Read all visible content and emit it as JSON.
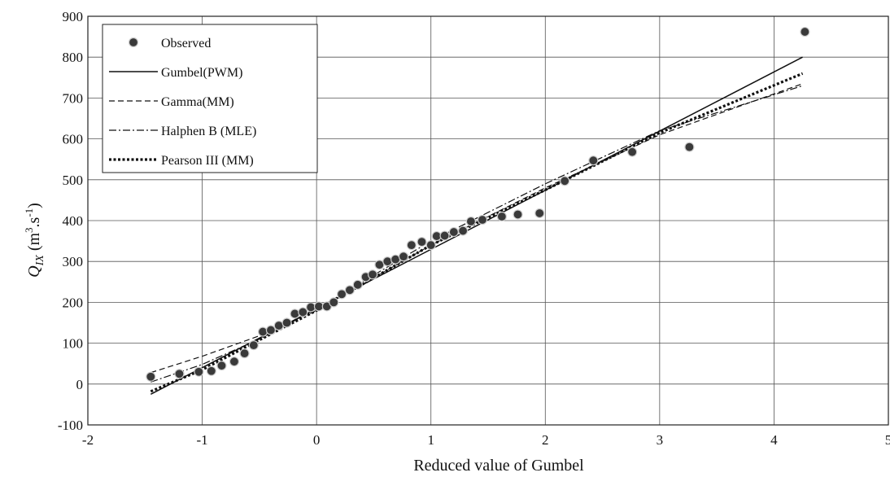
{
  "chart_data": {
    "type": "scatter",
    "title": "",
    "xlabel": "Reduced value of Gumbel",
    "ylabel": {
      "main": "Q",
      "sub": "IX",
      "unit_open": " (m",
      "unit_sup1": "3",
      "unit_mid": ".s",
      "unit_sup2": "-1",
      "unit_close": ")"
    },
    "xlim": [
      -2,
      5
    ],
    "ylim": [
      -100,
      900
    ],
    "xticks": [
      "-2",
      "-1",
      "0",
      "1",
      "2",
      "3",
      "4",
      "5"
    ],
    "yticks": [
      "-100",
      "0",
      "100",
      "200",
      "300",
      "400",
      "500",
      "600",
      "700",
      "800",
      "900"
    ],
    "grid": true,
    "legend_position": "top-left",
    "series": [
      {
        "name": "Observed",
        "type": "scatter",
        "points": [
          [
            -1.45,
            18
          ],
          [
            -1.2,
            25
          ],
          [
            -1.03,
            30
          ],
          [
            -0.92,
            32
          ],
          [
            -0.83,
            45
          ],
          [
            -0.72,
            55
          ],
          [
            -0.63,
            75
          ],
          [
            -0.55,
            95
          ],
          [
            -0.47,
            128
          ],
          [
            -0.4,
            132
          ],
          [
            -0.33,
            143
          ],
          [
            -0.26,
            150
          ],
          [
            -0.19,
            172
          ],
          [
            -0.12,
            176
          ],
          [
            -0.05,
            188
          ],
          [
            0.02,
            190
          ],
          [
            0.09,
            190
          ],
          [
            0.15,
            200
          ],
          [
            0.22,
            220
          ],
          [
            0.29,
            230
          ],
          [
            0.36,
            243
          ],
          [
            0.43,
            262
          ],
          [
            0.49,
            268
          ],
          [
            0.55,
            292
          ],
          [
            0.62,
            300
          ],
          [
            0.69,
            305
          ],
          [
            0.76,
            312
          ],
          [
            0.83,
            340
          ],
          [
            0.92,
            348
          ],
          [
            1.0,
            340
          ],
          [
            1.05,
            362
          ],
          [
            1.12,
            363
          ],
          [
            1.2,
            372
          ],
          [
            1.28,
            375
          ],
          [
            1.35,
            398
          ],
          [
            1.45,
            402
          ],
          [
            1.62,
            410
          ],
          [
            1.76,
            415
          ],
          [
            1.95,
            418
          ],
          [
            2.17,
            497
          ],
          [
            2.42,
            547
          ],
          [
            2.76,
            568
          ],
          [
            3.26,
            580
          ],
          [
            4.27,
            862
          ]
        ]
      },
      {
        "name": "Gumbel(PWM)",
        "type": "line",
        "style": "solid",
        "points": [
          [
            -1.45,
            -25
          ],
          [
            4.25,
            800
          ]
        ]
      },
      {
        "name": "Gamma(MM)",
        "type": "line",
        "style": "dashed",
        "points": [
          [
            -1.45,
            28
          ],
          [
            -1.0,
            68
          ],
          [
            -0.5,
            118
          ],
          [
            0.0,
            180
          ],
          [
            1.0,
            340
          ],
          [
            2.0,
            480
          ],
          [
            3.0,
            610
          ],
          [
            4.25,
            735
          ]
        ]
      },
      {
        "name": "Halphen B (MLE)",
        "type": "line",
        "style": "dashdot",
        "points": [
          [
            -1.45,
            5
          ],
          [
            -1.0,
            48
          ],
          [
            -0.5,
            110
          ],
          [
            0.0,
            183
          ],
          [
            1.0,
            350
          ],
          [
            2.0,
            490
          ],
          [
            3.0,
            620
          ],
          [
            4.25,
            730
          ]
        ]
      },
      {
        "name": "Pearson III (MM)",
        "type": "line",
        "style": "dotted",
        "points": [
          [
            -1.45,
            -18
          ],
          [
            -1.0,
            35
          ],
          [
            -0.5,
            108
          ],
          [
            0.0,
            180
          ],
          [
            1.0,
            340
          ],
          [
            2.0,
            475
          ],
          [
            3.0,
            615
          ],
          [
            4.25,
            760
          ]
        ]
      }
    ]
  }
}
